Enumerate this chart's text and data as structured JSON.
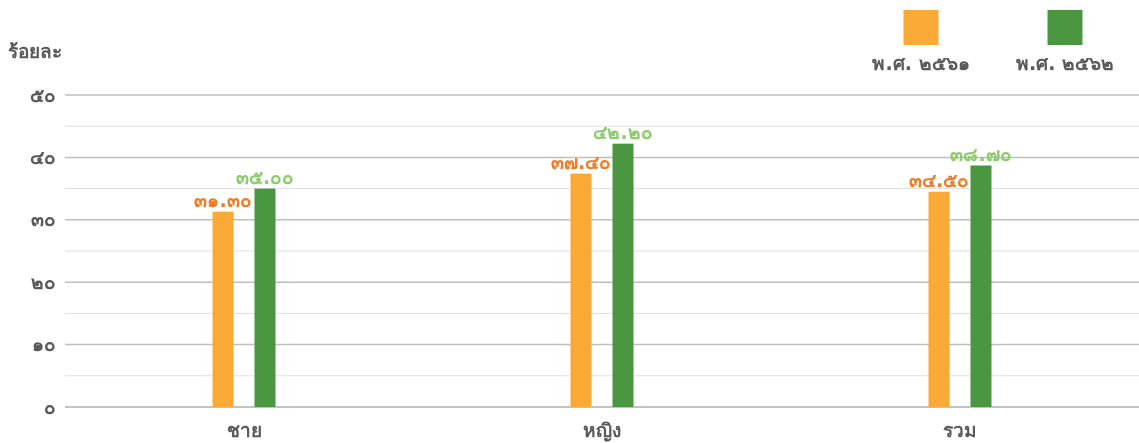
{
  "chart_data": {
    "type": "bar",
    "ylabel": "ร้อยละ",
    "categories": [
      "ชาย",
      "หญิง",
      "รวม"
    ],
    "series": [
      {
        "name": "พ.ศ. ๒๕๖๑",
        "color": "#f9a935",
        "values": [
          31.3,
          37.4,
          34.5
        ],
        "value_labels": [
          "๓๑.๓๐",
          "๓๗.๔๐",
          "๓๔.๕๐"
        ]
      },
      {
        "name": "พ.ศ. ๒๕๖๒",
        "color": "#4a9641",
        "values": [
          35.0,
          42.2,
          38.7
        ],
        "value_labels": [
          "๓๕.๐๐",
          "๔๒.๒๐",
          "๓๘.๗๐"
        ]
      }
    ],
    "ylim": [
      0,
      50
    ],
    "yticks": [
      {
        "value": 0,
        "label": "๐"
      },
      {
        "value": 5,
        "label": null
      },
      {
        "value": 10,
        "label": "๑๐"
      },
      {
        "value": 15,
        "label": null
      },
      {
        "value": 20,
        "label": "๒๐"
      },
      {
        "value": 25,
        "label": null
      },
      {
        "value": 30,
        "label": "๓๐"
      },
      {
        "value": 35,
        "label": null
      },
      {
        "value": 40,
        "label": "๔๐"
      },
      {
        "value": 45,
        "label": null
      },
      {
        "value": 50,
        "label": "๕๐"
      }
    ],
    "grid": true,
    "legend": "top right"
  }
}
